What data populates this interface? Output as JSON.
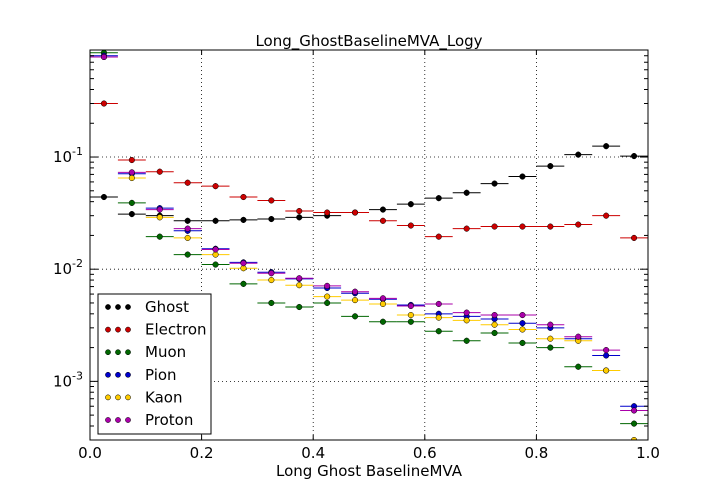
{
  "chart_data": {
    "type": "scatter",
    "title": "Long_GhostBaselineMVA_Logy",
    "xlabel": "Long Ghost BaselineMVA",
    "ylabel": "",
    "xlim": [
      0.0,
      1.0
    ],
    "ylim": [
      0.0003,
      0.9
    ],
    "yscale": "log",
    "grid": true,
    "legend_position": "lower-left",
    "x_ticks": [
      "0.0",
      "0.2",
      "0.4",
      "0.6",
      "0.8",
      "1.0"
    ],
    "y_ticks": [
      {
        "base": "10",
        "exp": "-3",
        "value": 0.001
      },
      {
        "base": "10",
        "exp": "-2",
        "value": 0.01
      },
      {
        "base": "10",
        "exp": "-1",
        "value": 0.1
      }
    ],
    "x": [
      0.025,
      0.075,
      0.125,
      0.175,
      0.225,
      0.275,
      0.325,
      0.375,
      0.425,
      0.475,
      0.525,
      0.575,
      0.625,
      0.675,
      0.725,
      0.775,
      0.825,
      0.875,
      0.925,
      0.975
    ],
    "x_halfwidth": 0.025,
    "series": [
      {
        "name": "Ghost",
        "color": "#000000",
        "values": [
          0.044,
          0.031,
          0.03,
          0.027,
          0.027,
          0.0275,
          0.028,
          0.029,
          0.03,
          0.032,
          0.034,
          0.038,
          0.043,
          0.048,
          0.058,
          0.067,
          0.083,
          0.105,
          0.125,
          0.102
        ]
      },
      {
        "name": "Electron",
        "color": "#cc0000",
        "values": [
          0.3,
          0.094,
          0.074,
          0.059,
          0.055,
          0.044,
          0.041,
          0.033,
          0.032,
          0.032,
          0.027,
          0.0245,
          0.0195,
          0.023,
          0.024,
          0.024,
          0.024,
          0.025,
          0.03,
          0.019
        ]
      },
      {
        "name": "Muon",
        "color": "#006600",
        "values": [
          0.85,
          0.039,
          0.0195,
          0.0135,
          0.011,
          0.0074,
          0.005,
          0.0046,
          0.005,
          0.0038,
          0.0034,
          0.0034,
          0.0028,
          0.0023,
          0.0027,
          0.0022,
          0.002,
          0.00135,
          0.00125,
          0.00042
        ]
      },
      {
        "name": "Pion",
        "color": "#0000cc",
        "values": [
          0.8,
          0.071,
          0.035,
          0.022,
          0.0152,
          0.0115,
          0.0094,
          0.0082,
          0.0068,
          0.0061,
          0.0054,
          0.0048,
          0.004,
          0.0038,
          0.0036,
          0.0033,
          0.003,
          0.0024,
          0.0017,
          0.0006
        ]
      },
      {
        "name": "Kaon",
        "color": "#ffcc00",
        "values": [
          0.78,
          0.065,
          0.029,
          0.019,
          0.0135,
          0.0102,
          0.008,
          0.0072,
          0.0057,
          0.0053,
          0.0049,
          0.0039,
          0.0037,
          0.0035,
          0.0032,
          0.0029,
          0.0024,
          0.0023,
          0.00125,
          0.0003
        ]
      },
      {
        "name": "Proton",
        "color": "#aa00aa",
        "values": [
          0.78,
          0.073,
          0.034,
          0.023,
          0.015,
          0.0113,
          0.0092,
          0.0083,
          0.0071,
          0.0063,
          0.0055,
          0.0047,
          0.0049,
          0.0041,
          0.0039,
          0.0039,
          0.0032,
          0.0025,
          0.0019,
          0.00055
        ]
      }
    ]
  }
}
